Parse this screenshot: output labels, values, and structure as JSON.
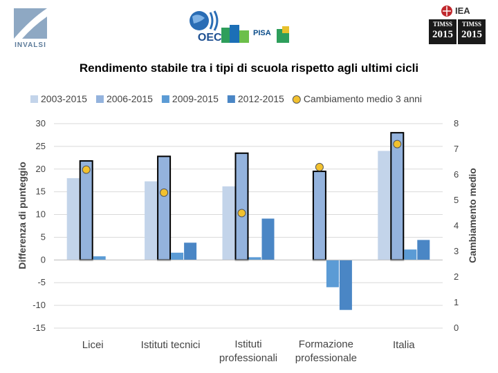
{
  "header": {
    "title": "Rendimento stabile tra i tipi di scuola rispetto agli ultimi cicli",
    "logos": {
      "invalsi": "INVALSI",
      "oecd": "OECD",
      "pisa": "PISA",
      "iea": "IEA",
      "timss1_top": "TIMSS",
      "timss1_year": "2015",
      "timss2_top": "TIMSS",
      "timss2_year": "2015"
    }
  },
  "chart_data": {
    "type": "bar",
    "categories": [
      "Licei",
      "Istituti tecnici",
      "Istituti professionali",
      "Formazione professionale",
      "Italia"
    ],
    "category_lines": [
      [
        "Licei"
      ],
      [
        "Istituti tecnici"
      ],
      [
        "Istituti",
        "professionali"
      ],
      [
        "Formazione",
        "professionale"
      ],
      [
        "Italia"
      ]
    ],
    "series": [
      {
        "name": "2003-2015",
        "color": "#c3d4ea",
        "values": [
          18,
          17.3,
          16.2,
          null,
          24
        ]
      },
      {
        "name": "2006-2015",
        "color": "#94b3dd",
        "values": [
          21.8,
          22.8,
          23.5,
          19.5,
          28
        ]
      },
      {
        "name": "2009-2015",
        "color": "#5b9bd5",
        "values": [
          0.8,
          1.6,
          0.6,
          -6,
          2.3
        ]
      },
      {
        "name": "2012-2015",
        "color": "#4a86c5",
        "values": [
          null,
          3.8,
          9.1,
          -11,
          4.4
        ]
      }
    ],
    "line_series": {
      "name": "Cambiamento medio 3 anni",
      "color": "#f2c12e",
      "values": [
        6.2,
        5.3,
        4.5,
        6.3,
        7.2
      ]
    },
    "ylabel": "Differenza di punteggio",
    "y2label": "Cambiamento medio",
    "ylim": [
      -15,
      30
    ],
    "yticks": [
      30,
      25,
      20,
      15,
      10,
      5,
      0,
      -5,
      -10,
      -15
    ],
    "y2lim": [
      0,
      8
    ],
    "y2ticks": [
      8,
      7,
      6,
      5,
      4,
      3,
      2,
      1,
      0
    ],
    "legend_position": "top"
  }
}
